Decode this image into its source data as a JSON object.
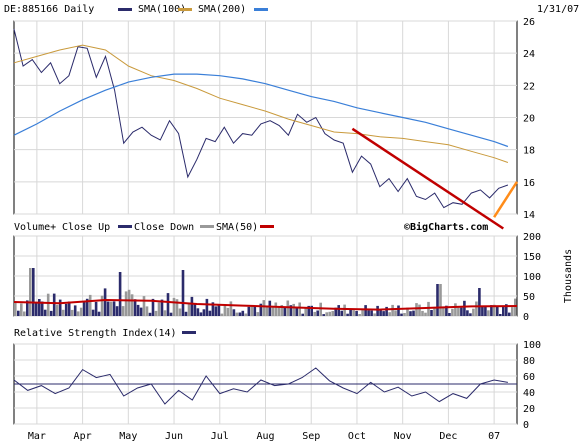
{
  "header": {
    "symbol_label": "DE:885166 Daily",
    "sma100_label": "SMA(100)",
    "sma200_label": "SMA(200)",
    "date": "1/31/07"
  },
  "volume_header": {
    "title": "Volume+",
    "close_up_label": "Close Up",
    "close_down_label": "Close Down",
    "sma_label": "SMA(50)",
    "watermark": "©BigCharts.com"
  },
  "rsi_header": {
    "title": "Relative Strength Index(14)"
  },
  "volume_unit": "Thousands",
  "months": [
    "Mar",
    "Apr",
    "May",
    "Jun",
    "Jul",
    "Aug",
    "Sep",
    "Oct",
    "Nov",
    "Dec",
    "07"
  ],
  "colors": {
    "price": "#2b2b6b",
    "sma100": "#c99a3c",
    "sma200": "#3a7fd8",
    "trend_down": "#c00000",
    "trend_up": "#ff8c1a",
    "close_up": "#999999",
    "close_down": "#2b2b6b",
    "vol_sma": "#c00000",
    "rsi": "#2b2b6b"
  },
  "chart_data": [
    {
      "type": "line",
      "title": "DE:885166 Daily",
      "ylim": [
        14,
        26
      ],
      "yticks": [
        14,
        16,
        18,
        20,
        22,
        24,
        26
      ],
      "x_range": [
        0,
        11
      ],
      "series": [
        {
          "name": "DE:885166",
          "x": [
            0,
            0.2,
            0.4,
            0.6,
            0.8,
            1.0,
            1.2,
            1.4,
            1.6,
            1.8,
            2.0,
            2.2,
            2.4,
            2.6,
            2.8,
            3.0,
            3.2,
            3.4,
            3.6,
            3.8,
            4.0,
            4.2,
            4.4,
            4.6,
            4.8,
            5.0,
            5.2,
            5.4,
            5.6,
            5.8,
            6.0,
            6.2,
            6.4,
            6.6,
            6.8,
            7.0,
            7.2,
            7.4,
            7.6,
            7.8,
            8.0,
            8.2,
            8.4,
            8.6,
            8.8,
            9.0,
            9.2,
            9.4,
            9.6,
            9.8,
            10.0,
            10.2,
            10.4,
            10.6,
            10.8
          ],
          "values": [
            25.5,
            23.2,
            23.6,
            22.8,
            23.4,
            22.1,
            22.6,
            24.4,
            24.3,
            22.5,
            23.8,
            21.7,
            18.4,
            19.1,
            19.4,
            18.9,
            18.6,
            19.8,
            19.0,
            16.3,
            17.4,
            18.7,
            18.5,
            19.4,
            18.4,
            19.0,
            18.9,
            19.6,
            19.8,
            19.5,
            18.9,
            20.2,
            19.7,
            20.0,
            19.0,
            18.6,
            18.4,
            16.6,
            17.6,
            17.1,
            15.7,
            16.2,
            15.4,
            16.2,
            15.1,
            14.9,
            15.3,
            14.4,
            14.7,
            14.6,
            15.3,
            15.5,
            15.0,
            15.6,
            15.8
          ]
        },
        {
          "name": "SMA(100)",
          "x": [
            0,
            0.5,
            1.0,
            1.5,
            2.0,
            2.5,
            3.0,
            3.5,
            4.0,
            4.5,
            5.0,
            5.5,
            6.0,
            6.5,
            7.0,
            7.5,
            8.0,
            8.5,
            9.0,
            9.5,
            10.0,
            10.5,
            10.8
          ],
          "values": [
            23.4,
            23.8,
            24.2,
            24.5,
            24.2,
            23.2,
            22.6,
            22.3,
            21.8,
            21.2,
            20.8,
            20.4,
            19.9,
            19.5,
            19.1,
            19.0,
            18.8,
            18.7,
            18.5,
            18.3,
            17.9,
            17.5,
            17.2
          ]
        },
        {
          "name": "SMA(200)",
          "x": [
            0,
            0.5,
            1.0,
            1.5,
            2.0,
            2.5,
            3.0,
            3.5,
            4.0,
            4.5,
            5.0,
            5.5,
            6.0,
            6.5,
            7.0,
            7.5,
            8.0,
            8.5,
            9.0,
            9.5,
            10.0,
            10.5,
            10.8
          ],
          "values": [
            18.9,
            19.6,
            20.4,
            21.1,
            21.7,
            22.2,
            22.5,
            22.7,
            22.7,
            22.6,
            22.4,
            22.1,
            21.7,
            21.3,
            21.0,
            20.6,
            20.3,
            20.0,
            19.7,
            19.3,
            18.9,
            18.5,
            18.2
          ]
        },
        {
          "name": "trend_down",
          "x": [
            7.4,
            10.7
          ],
          "values": [
            19.3,
            13.1
          ]
        },
        {
          "name": "trend_up",
          "x": [
            10.5,
            11.0
          ],
          "values": [
            13.8,
            16.0
          ]
        }
      ]
    },
    {
      "type": "bar",
      "title": "Volume+",
      "ylim": [
        0,
        200
      ],
      "yticks": [
        0,
        50,
        100,
        150,
        200
      ],
      "ylabel": "Thousands",
      "x_range": [
        0,
        11
      ],
      "seed": 7,
      "bar_count": 168,
      "spikes": [
        {
          "x": 0.4,
          "v": 120
        },
        {
          "x": 2.3,
          "v": 110
        },
        {
          "x": 3.7,
          "v": 115
        },
        {
          "x": 9.3,
          "v": 80
        },
        {
          "x": 10.2,
          "v": 70
        }
      ],
      "sma50": {
        "x": [
          0,
          1,
          2,
          3,
          4,
          5,
          6,
          7,
          8,
          9,
          10,
          11
        ],
        "values": [
          35,
          32,
          40,
          38,
          30,
          26,
          22,
          18,
          16,
          20,
          24,
          25
        ]
      }
    },
    {
      "type": "line",
      "title": "Relative Strength Index(14)",
      "ylim": [
        0,
        100
      ],
      "yticks": [
        0,
        20,
        40,
        60,
        80,
        100
      ],
      "x_range": [
        0,
        11
      ],
      "series": [
        {
          "name": "RSI(14)",
          "x": [
            0,
            0.3,
            0.6,
            0.9,
            1.2,
            1.5,
            1.8,
            2.1,
            2.4,
            2.7,
            3.0,
            3.3,
            3.6,
            3.9,
            4.2,
            4.5,
            4.8,
            5.1,
            5.4,
            5.7,
            6.0,
            6.3,
            6.6,
            6.9,
            7.2,
            7.5,
            7.8,
            8.1,
            8.4,
            8.7,
            9.0,
            9.3,
            9.6,
            9.9,
            10.2,
            10.5,
            10.8
          ],
          "values": [
            55,
            42,
            48,
            38,
            45,
            68,
            58,
            62,
            35,
            45,
            50,
            25,
            42,
            30,
            60,
            38,
            44,
            40,
            55,
            48,
            50,
            58,
            70,
            54,
            45,
            38,
            52,
            40,
            46,
            35,
            40,
            28,
            38,
            32,
            50,
            55,
            52
          ]
        }
      ],
      "reference_line": 50
    }
  ]
}
